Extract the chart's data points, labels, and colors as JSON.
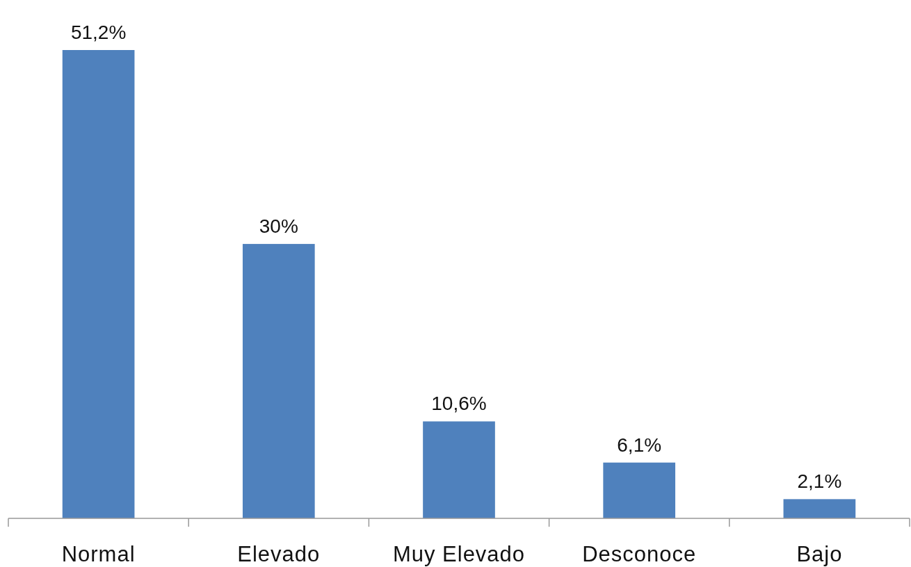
{
  "chart_data": {
    "type": "bar",
    "categories": [
      "Normal",
      "Elevado",
      "Muy Elevado",
      "Desconoce",
      "Bajo"
    ],
    "values": [
      51.2,
      30,
      10.6,
      6.1,
      2.1
    ],
    "value_labels": [
      "51,2%",
      "30%",
      "10,6%",
      "6,1%",
      "2,1%"
    ],
    "color": "#4f81bd"
  }
}
